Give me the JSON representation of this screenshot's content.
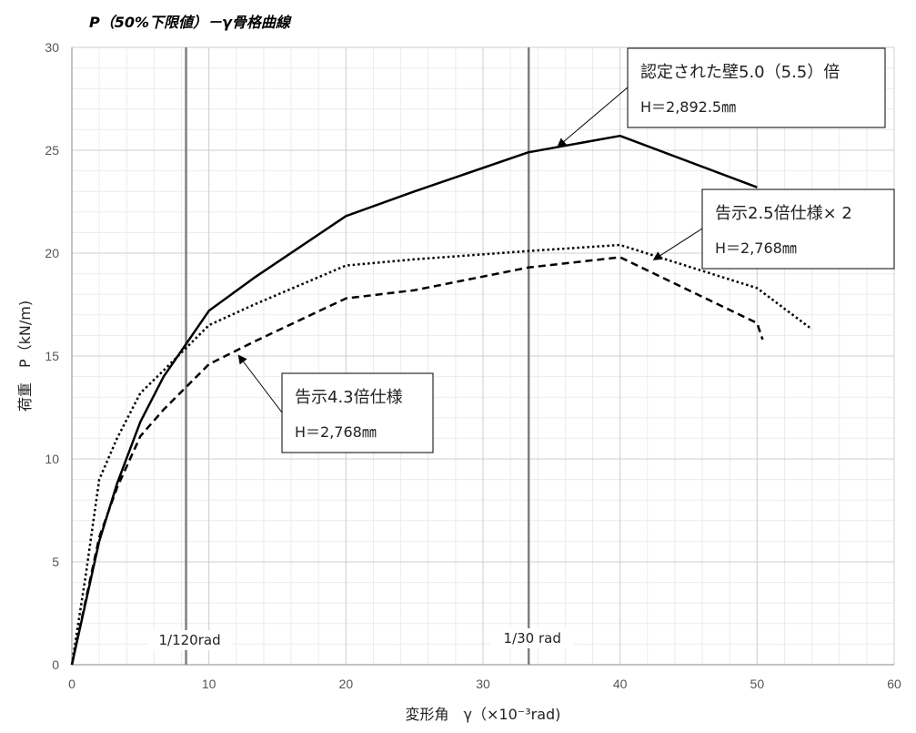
{
  "chart_data": {
    "type": "line",
    "title": "P（50%下限値）－γ骨格曲線",
    "xlabel": "変形角　γ（×10⁻³rad)",
    "ylabel": "荷重　P（kN/m)",
    "xlim": [
      0,
      60
    ],
    "ylim": [
      0,
      30
    ],
    "xticks": [
      "0",
      "10",
      "20",
      "30",
      "40",
      "50",
      "60"
    ],
    "yticks": [
      "0",
      "5",
      "10",
      "15",
      "20",
      "25",
      "30"
    ],
    "grid": true,
    "series": [
      {
        "name": "認定された壁5.0（5.5）倍",
        "style": "solid",
        "color": "#000000",
        "x": [
          0,
          2,
          3.3,
          5,
          6.7,
          10,
          13.3,
          20,
          25,
          33.3,
          40,
          50
        ],
        "y": [
          0,
          6,
          8.8,
          11.8,
          14,
          17.2,
          18.8,
          21.8,
          23.0,
          24.9,
          25.7,
          23.2
        ]
      },
      {
        "name": "告示2.5倍仕様×２",
        "style": "dotted",
        "color": "#000000",
        "x": [
          0,
          1,
          2,
          3.3,
          5,
          6.7,
          10,
          13.3,
          20,
          25,
          33.3,
          40,
          50,
          54
        ],
        "y": [
          0,
          4.3,
          9.0,
          11.0,
          13.2,
          14.3,
          16.5,
          17.5,
          19.4,
          19.7,
          20.1,
          20.4,
          18.3,
          16.3
        ]
      },
      {
        "name": "告示4.3倍仕様",
        "style": "dashed",
        "color": "#000000",
        "x": [
          0,
          2,
          3.3,
          5,
          6.7,
          10,
          13.3,
          20,
          25,
          33.3,
          40,
          50,
          50.4
        ],
        "y": [
          0,
          6.2,
          8.6,
          11.1,
          12.4,
          14.6,
          15.7,
          17.8,
          18.2,
          19.3,
          19.8,
          16.6,
          15.8
        ]
      }
    ],
    "reference_lines": [
      {
        "x": 8.333,
        "label": "1/120rad"
      },
      {
        "x": 33.333,
        "label": "1/30 rad"
      }
    ],
    "annotations": [
      {
        "line1": "認定された壁5.0（5.5）倍",
        "line2": "H＝2,892.5㎜",
        "arrow_to": [
          35.5,
          25.2
        ]
      },
      {
        "line1": "告示2.5倍仕様× 2",
        "line2": "H＝2,768㎜",
        "arrow_to": [
          42.5,
          19.7
        ]
      },
      {
        "line1": "告示4.3倍仕様",
        "line2": "H＝2,768㎜",
        "arrow_to": [
          12.2,
          15.0
        ]
      }
    ]
  }
}
